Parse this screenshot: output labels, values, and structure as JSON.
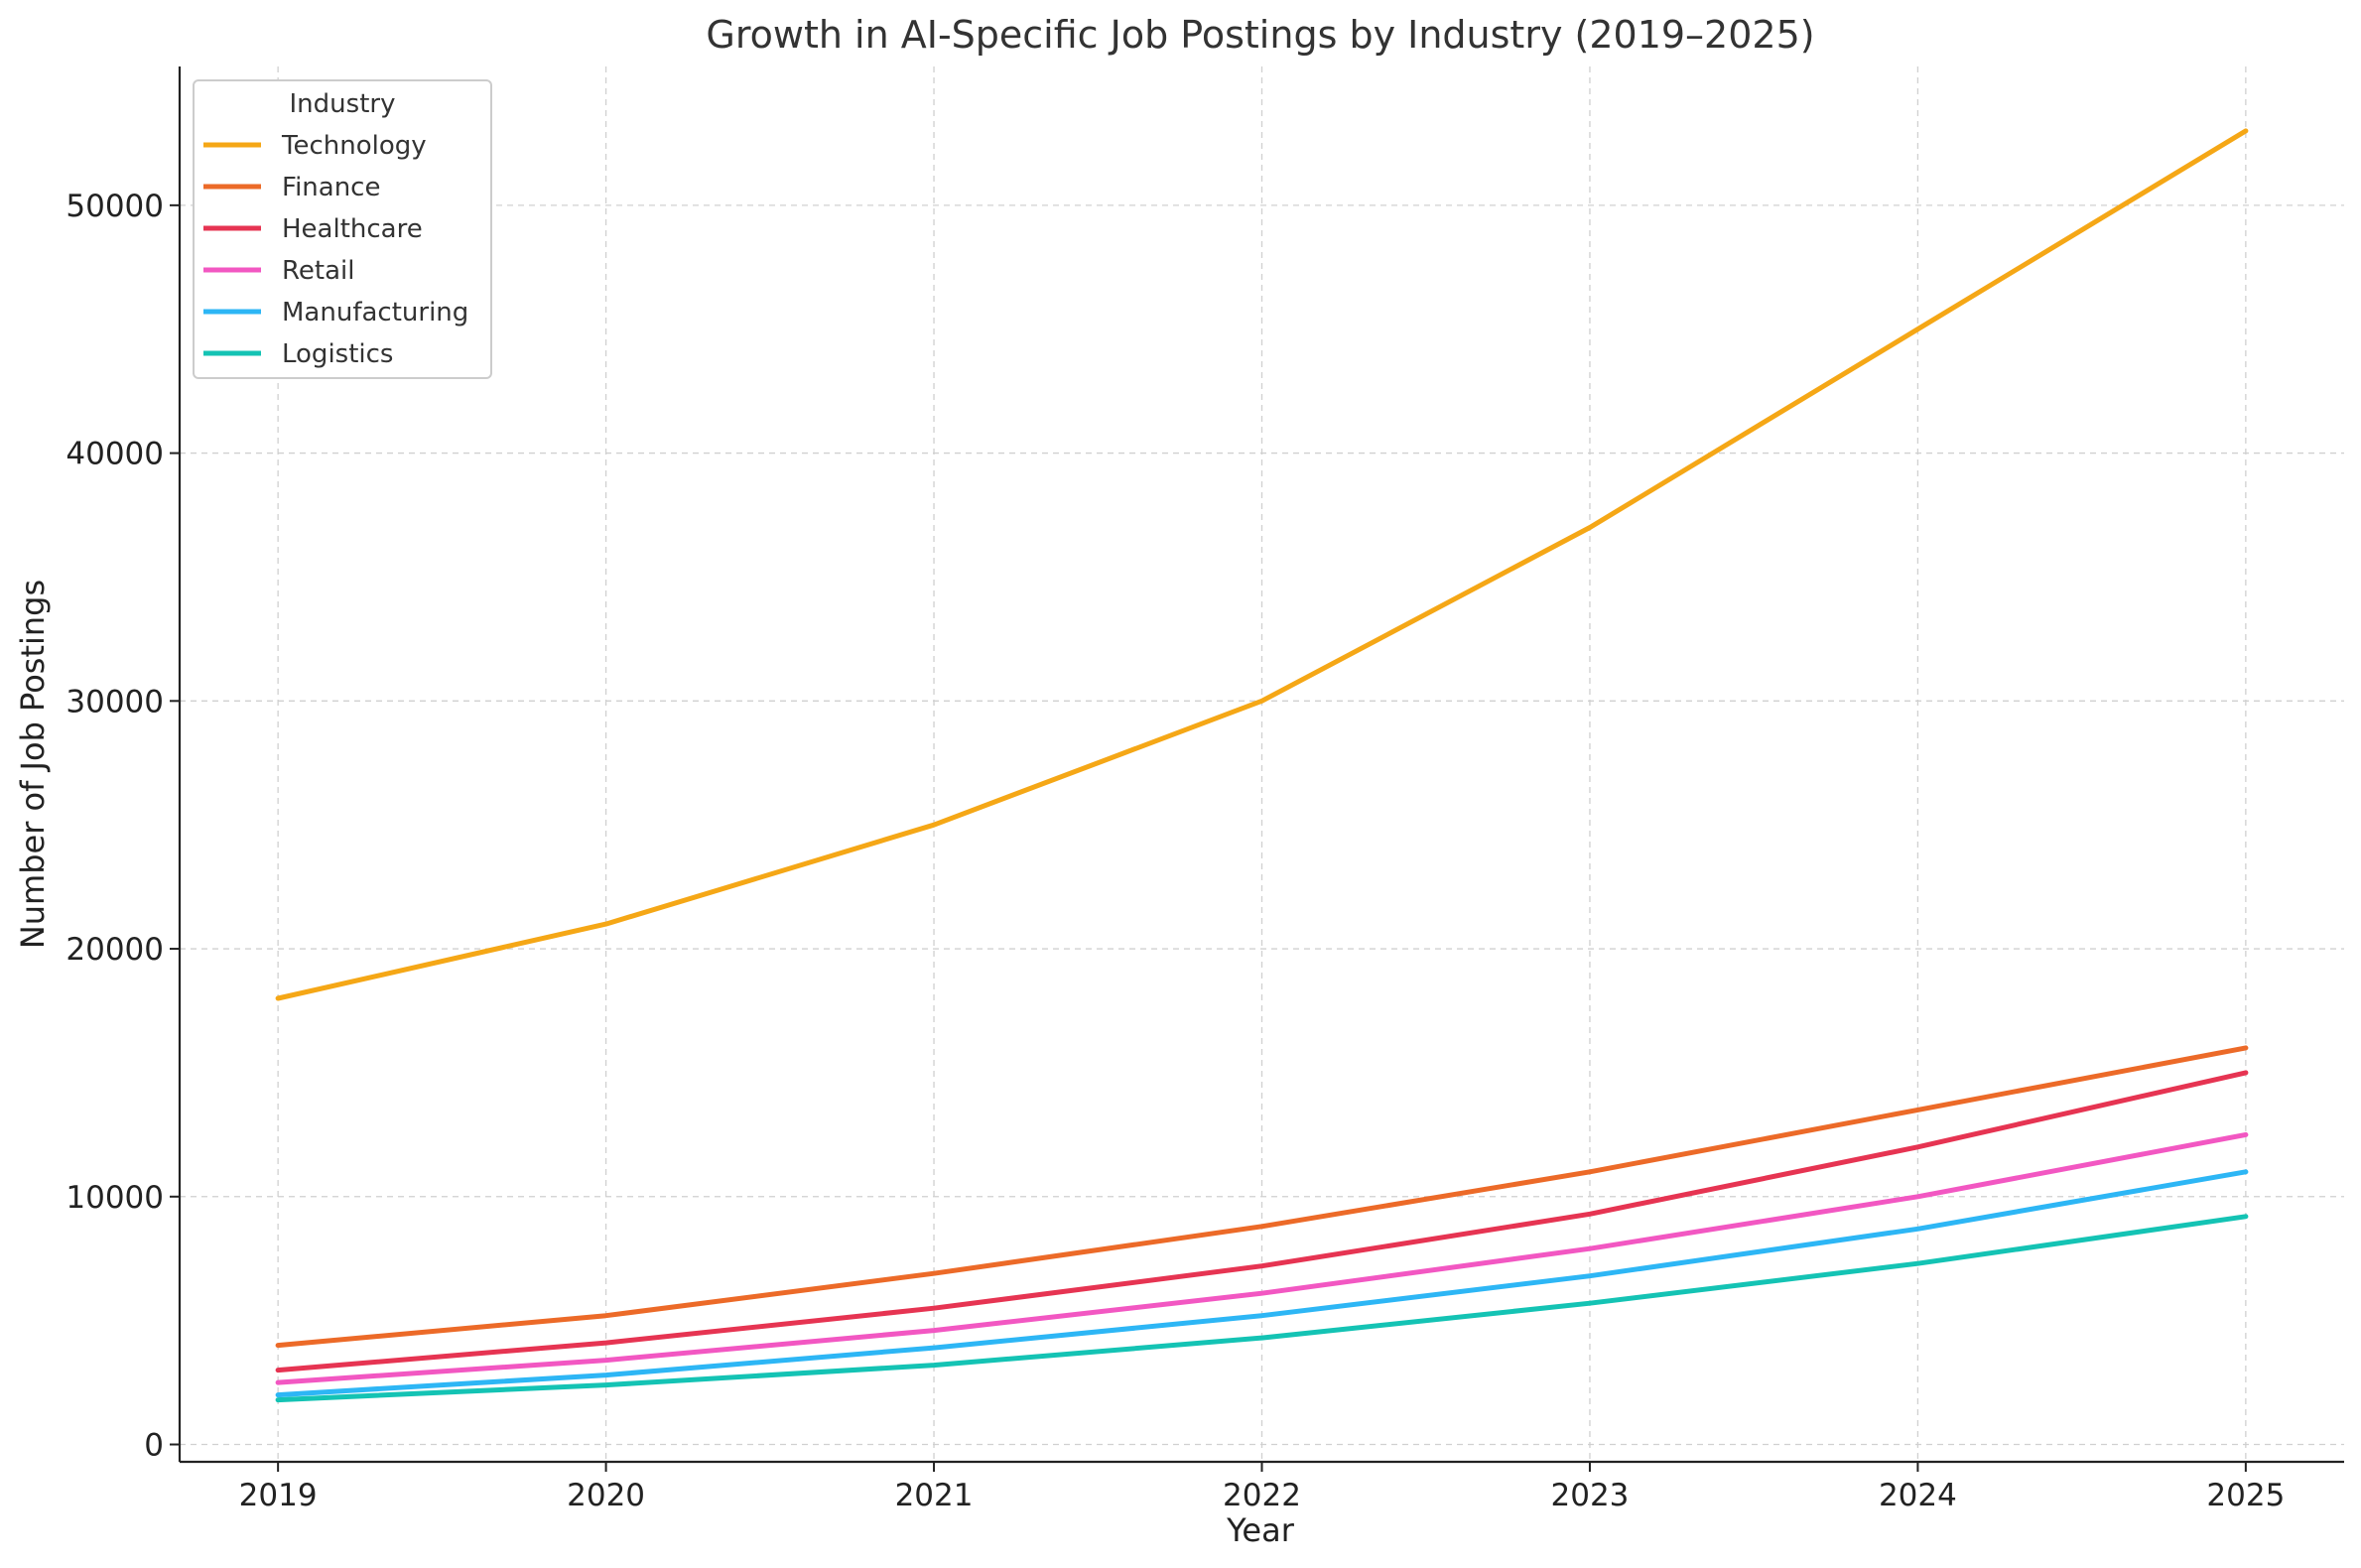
{
  "chart_data": {
    "type": "line",
    "title": "Growth in AI-Specific Job Postings by Industry (2019–2025)",
    "xlabel": "Year",
    "ylabel": "Number of Job Postings",
    "x": [
      2019,
      2020,
      2021,
      2022,
      2023,
      2024,
      2025
    ],
    "x_tick_labels": [
      "2019",
      "2020",
      "2021",
      "2022",
      "2023",
      "2024",
      "2025"
    ],
    "xlim": [
      2018.7,
      2025.3
    ],
    "ylim": [
      -700,
      55600
    ],
    "y_ticks": [
      0,
      10000,
      20000,
      30000,
      40000,
      50000
    ],
    "y_tick_labels": [
      "0",
      "10000",
      "20000",
      "30000",
      "40000",
      "50000"
    ],
    "grid": true,
    "legend": {
      "title": "Industry",
      "placement": "top-left"
    },
    "series": [
      {
        "name": "Technology",
        "color": "#F5A716",
        "values": [
          18000,
          21000,
          25000,
          30000,
          37000,
          45000,
          53000
        ]
      },
      {
        "name": "Finance",
        "color": "#EC6A28",
        "values": [
          4000,
          5200,
          6900,
          8800,
          11000,
          13500,
          16000
        ]
      },
      {
        "name": "Healthcare",
        "color": "#E63452",
        "values": [
          3000,
          4100,
          5500,
          7200,
          9300,
          12000,
          15000
        ]
      },
      {
        "name": "Retail",
        "color": "#F257C2",
        "values": [
          2500,
          3400,
          4600,
          6100,
          7900,
          10000,
          12500
        ]
      },
      {
        "name": "Manufacturing",
        "color": "#2DB6F5",
        "values": [
          2000,
          2800,
          3900,
          5200,
          6800,
          8700,
          11000
        ]
      },
      {
        "name": "Logistics",
        "color": "#14C3B4",
        "values": [
          1800,
          2400,
          3200,
          4300,
          5700,
          7300,
          9200
        ]
      }
    ]
  }
}
